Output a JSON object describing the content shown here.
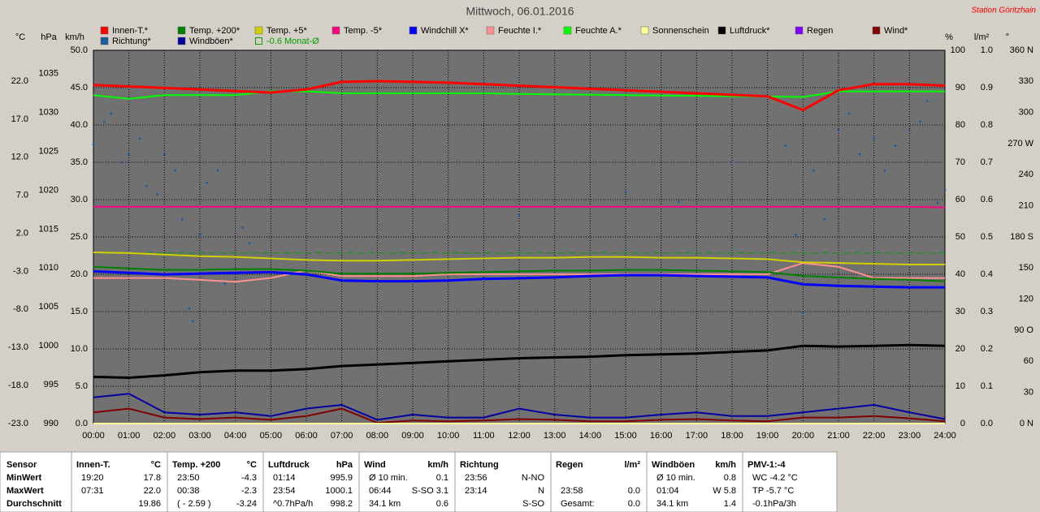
{
  "chart_data": {
    "type": "line",
    "title": "Mittwoch, 06.01.2016",
    "station": "Station Göritzhain",
    "x": [
      0,
      1,
      2,
      3,
      4,
      5,
      6,
      7,
      8,
      9,
      10,
      11,
      12,
      13,
      14,
      15,
      16,
      17,
      18,
      19,
      20,
      21,
      22,
      23,
      24
    ],
    "xlim": [
      0,
      24
    ],
    "xticks": [
      {
        "value": 0,
        "label": "00:00"
      },
      {
        "value": 1,
        "label": "01:00"
      },
      {
        "value": 2,
        "label": "02:00"
      },
      {
        "value": 3,
        "label": "03:00"
      },
      {
        "value": 4,
        "label": "04:00"
      },
      {
        "value": 5,
        "label": "05:00"
      },
      {
        "value": 6,
        "label": "06:00"
      },
      {
        "value": 7,
        "label": "07:00"
      },
      {
        "value": 8,
        "label": "08:00"
      },
      {
        "value": 9,
        "label": "09:00"
      },
      {
        "value": 10,
        "label": "10:00"
      },
      {
        "value": 11,
        "label": "11:00"
      },
      {
        "value": 12,
        "label": "12:00"
      },
      {
        "value": 13,
        "label": "13:00"
      },
      {
        "value": 14,
        "label": "14:00"
      },
      {
        "value": 15,
        "label": "15:00"
      },
      {
        "value": 16,
        "label": "16:00"
      },
      {
        "value": 17,
        "label": "17:00"
      },
      {
        "value": 18,
        "label": "18:00"
      },
      {
        "value": 19,
        "label": "19:00"
      },
      {
        "value": 20,
        "label": "20:00"
      },
      {
        "value": 21,
        "label": "21:00"
      },
      {
        "value": 22,
        "label": "22:00"
      },
      {
        "value": 23,
        "label": "23:00"
      },
      {
        "value": 24,
        "label": "24:00"
      }
    ],
    "grid": true,
    "grid_axis": "wind",
    "axes": {
      "temp": {
        "label": "°C",
        "lim": [
          -23,
          26.05
        ],
        "ticks": [
          {
            "value": -23,
            "label": "-23.0"
          },
          {
            "value": -18,
            "label": "-18.0"
          },
          {
            "value": -13,
            "label": "-13.0"
          },
          {
            "value": -8,
            "label": "-8.0"
          },
          {
            "value": -3,
            "label": "-3.0"
          },
          {
            "value": 2,
            "label": "2.0"
          },
          {
            "value": 7,
            "label": "7.0"
          },
          {
            "value": 12,
            "label": "12.0"
          },
          {
            "value": 17,
            "label": "17.0"
          },
          {
            "value": 22,
            "label": "22.0"
          }
        ]
      },
      "press": {
        "label": "hPa",
        "lim": [
          990,
          1038
        ],
        "ticks": [
          990,
          995,
          1000,
          1005,
          1010,
          1015,
          1020,
          1025,
          1030,
          1035
        ]
      },
      "wind": {
        "label": "km/h",
        "lim": [
          0,
          50
        ],
        "ticks": [
          {
            "value": 0,
            "label": "0.0"
          },
          {
            "value": 5,
            "label": "5.0"
          },
          {
            "value": 10,
            "label": "10.0"
          },
          {
            "value": 15,
            "label": "15.0"
          },
          {
            "value": 20,
            "label": "20.0"
          },
          {
            "value": 25,
            "label": "25.0"
          },
          {
            "value": 30,
            "label": "30.0"
          },
          {
            "value": 35,
            "label": "35.0"
          },
          {
            "value": 40,
            "label": "40.0"
          },
          {
            "value": 45,
            "label": "45.0"
          },
          {
            "value": 50,
            "label": "50.0"
          }
        ]
      },
      "hum": {
        "label": "%",
        "lim": [
          0,
          100
        ],
        "ticks": [
          0,
          10,
          20,
          30,
          40,
          50,
          60,
          70,
          80,
          90,
          100
        ]
      },
      "rain": {
        "label": "l/m²",
        "lim": [
          0,
          1
        ],
        "ticks": [
          {
            "value": 0,
            "label": "0.0"
          },
          0.1,
          0.2,
          0.3,
          0.4,
          0.5,
          0.6,
          0.7,
          0.8,
          0.9,
          {
            "value": 1,
            "label": "1.0"
          }
        ]
      },
      "dir": {
        "label": "°",
        "lim": [
          0,
          360
        ],
        "ticks": [
          {
            "value": 0,
            "label": "0 N"
          },
          30,
          60,
          {
            "value": 90,
            "label": "90 O"
          },
          120,
          150,
          {
            "value": 180,
            "label": "180 S"
          },
          210,
          240,
          {
            "value": 270,
            "label": "270 W"
          },
          300,
          330,
          {
            "value": 360,
            "label": "360 N"
          }
        ]
      }
    },
    "series": [
      {
        "name": "Innen-T.*",
        "color": "#ff0000",
        "axis": "temp",
        "width": 3,
        "values": [
          21.5,
          21.3,
          21.1,
          20.9,
          20.7,
          20.5,
          20.9,
          21.9,
          22.0,
          21.9,
          21.8,
          21.6,
          21.4,
          21.2,
          21.0,
          20.8,
          20.6,
          20.4,
          20.2,
          20.0,
          18.2,
          20.8,
          21.6,
          21.6,
          21.4
        ]
      },
      {
        "name": "Temp. +200*",
        "color": "#008000",
        "axis": "temp",
        "width": 2,
        "values": [
          -2.4,
          -2.6,
          -2.8,
          -2.8,
          -2.7,
          -2.7,
          -2.9,
          -3.3,
          -3.3,
          -3.3,
          -3.2,
          -3.1,
          -3.0,
          -2.9,
          -2.9,
          -2.8,
          -2.8,
          -2.9,
          -3.0,
          -3.1,
          -3.6,
          -3.8,
          -4.0,
          -4.1,
          -4.3
        ]
      },
      {
        "name": "Temp. +5*",
        "color": "#d0d000",
        "axis": "temp",
        "width": 2,
        "values": [
          -0.5,
          -0.6,
          -0.8,
          -1.0,
          -1.1,
          -1.3,
          -1.5,
          -1.6,
          -1.6,
          -1.5,
          -1.4,
          -1.3,
          -1.2,
          -1.2,
          -1.1,
          -1.1,
          -1.2,
          -1.2,
          -1.3,
          -1.4,
          -1.8,
          -1.9,
          -2.0,
          -2.1,
          -2.1
        ]
      },
      {
        "name": "Temp. -5*",
        "color": "#ff0080",
        "axis": "temp",
        "width": 2,
        "values": [
          5.5,
          5.5,
          5.5,
          5.5,
          5.5,
          5.5,
          5.5,
          5.5,
          5.5,
          5.5,
          5.5,
          5.5,
          5.5,
          5.5,
          5.5,
          5.5,
          5.5,
          5.5,
          5.5,
          5.5,
          5.5,
          5.5,
          5.5,
          5.5,
          5.4
        ]
      },
      {
        "name": "Windchill X*",
        "color": "#0000ff",
        "axis": "temp",
        "width": 3,
        "values": [
          -3.0,
          -3.2,
          -3.4,
          -3.3,
          -3.2,
          -3.1,
          -3.4,
          -4.2,
          -4.3,
          -4.3,
          -4.2,
          -4.0,
          -3.9,
          -3.8,
          -3.6,
          -3.5,
          -3.5,
          -3.6,
          -3.7,
          -3.8,
          -4.7,
          -4.9,
          -5.0,
          -5.1,
          -5.1
        ]
      },
      {
        "name": "Feuchte I.*",
        "color": "#ff9090",
        "axis": "hum",
        "width": 2,
        "values": [
          39,
          39,
          39,
          38.5,
          38,
          39,
          41,
          39.5,
          39.5,
          39.5,
          40,
          40,
          40,
          40,
          40,
          40,
          40,
          40,
          40,
          40,
          43,
          42,
          39,
          39,
          39
        ]
      },
      {
        "name": "Feuchte A.*",
        "color": "#00ff00",
        "axis": "hum",
        "width": 2,
        "values": [
          88,
          87,
          88,
          88,
          88,
          89,
          89,
          88.5,
          88.5,
          88.5,
          88.5,
          88.5,
          88.3,
          88.2,
          88.1,
          88,
          87.9,
          87.8,
          87.7,
          87.6,
          87.5,
          89,
          89,
          89,
          89
        ]
      },
      {
        "name": "Sonnenschein",
        "color": "#ffff99",
        "axis": "wind",
        "width": 2,
        "values": [
          0,
          0,
          0,
          0,
          0,
          0,
          0,
          0,
          0,
          0,
          0,
          0,
          0,
          0,
          0,
          0,
          0,
          0,
          0,
          0,
          0,
          0,
          0,
          0,
          0
        ]
      },
      {
        "name": "Luftdruck*",
        "color": "#000000",
        "axis": "press",
        "width": 3,
        "values": [
          996.0,
          995.9,
          996.2,
          996.6,
          996.8,
          996.8,
          997.0,
          997.4,
          997.6,
          997.8,
          998.0,
          998.2,
          998.4,
          998.5,
          998.6,
          998.8,
          998.9,
          999.0,
          999.2,
          999.4,
          1000.0,
          999.9,
          1000.0,
          1000.1,
          1000.0
        ]
      },
      {
        "name": "Regen",
        "color": "#8000ff",
        "axis": "rain",
        "width": 2,
        "values": [
          0,
          0,
          0,
          0,
          0,
          0,
          0,
          0,
          0,
          0,
          0,
          0,
          0,
          0,
          0,
          0,
          0,
          0,
          0,
          0,
          0,
          0,
          0,
          0,
          0
        ]
      },
      {
        "name": "Wind*",
        "color": "#800000",
        "axis": "wind",
        "width": 2,
        "values": [
          1.5,
          2.0,
          0.8,
          0.6,
          0.8,
          0.5,
          1.0,
          2.0,
          0.1,
          0.4,
          0.3,
          0.4,
          0.6,
          0.5,
          0.3,
          0.3,
          0.5,
          0.6,
          0.4,
          0.3,
          0.8,
          0.8,
          1.0,
          0.7,
          0.3
        ]
      },
      {
        "name": "Richtung*",
        "color": "#1e5aa0",
        "axis": "dir",
        "type": "scatter",
        "x": [
          0.0,
          0.3,
          0.5,
          0.8,
          1.0,
          1.3,
          1.5,
          1.8,
          2.0,
          2.3,
          2.5,
          2.7,
          2.8,
          3.0,
          3.2,
          3.5,
          3.7,
          4.0,
          4.2,
          4.4,
          6.0,
          12.0,
          15.0,
          16.5,
          18.0,
          19.5,
          19.8,
          20.0,
          20.3,
          20.6,
          21.0,
          21.3,
          21.6,
          22.0,
          22.3,
          22.6,
          23.0,
          23.3,
          23.5,
          23.8,
          24.0
        ],
        "values": [
          269,
          291,
          299,
          252,
          260,
          275,
          229,
          221,
          260,
          244,
          197,
          111,
          99,
          182,
          232,
          244,
          135,
          209,
          189,
          174,
          157,
          201,
          223,
          214,
          252,
          268,
          182,
          107,
          244,
          197,
          283,
          299,
          260,
          275,
          244,
          268,
          283,
          291,
          311,
          213,
          225
        ]
      },
      {
        "name": "Windböen*",
        "color": "#0000a0",
        "axis": "wind",
        "width": 2,
        "values": [
          3.5,
          4.0,
          1.5,
          1.2,
          1.5,
          1.0,
          2.0,
          2.5,
          0.5,
          1.2,
          0.8,
          0.8,
          2.0,
          1.2,
          0.8,
          0.8,
          1.2,
          1.5,
          1.0,
          1.0,
          1.5,
          2.0,
          2.5,
          1.5,
          0.6
        ]
      }
    ],
    "reference_lines": [
      {
        "name": "-0.6 Monat-Ø",
        "value": -0.6,
        "axis": "temp",
        "color": "#00a000"
      }
    ]
  },
  "table": {
    "row_labels": [
      "Sensor",
      "MinWert",
      "MaxWert",
      "Durchschnitt"
    ],
    "columns": [
      {
        "title": "Innen-T.",
        "unit": "°C",
        "rows": [
          {
            "time": "19:20",
            "value": "17.8"
          },
          {
            "time": "07:31",
            "value": "22.0"
          },
          {
            "value": "19.86"
          }
        ]
      },
      {
        "title": "Temp. +200",
        "unit": "°C",
        "rows": [
          {
            "time": "23:50",
            "value": "-4.3"
          },
          {
            "time": "00:38",
            "value": "-2.3"
          },
          {
            "time": "( - 2.59 )",
            "value": "-3.24"
          }
        ]
      },
      {
        "title": "Luftdruck",
        "unit": "hPa",
        "rows": [
          {
            "time": "01:14",
            "value": "995.9"
          },
          {
            "time": "23:54",
            "value": "1000.1"
          },
          {
            "time": "^0.7hPa/h",
            "value": "998.2"
          }
        ]
      },
      {
        "title": "Wind",
        "unit": "km/h",
        "rows": [
          {
            "time": "Ø 10 min.",
            "value": "0.1"
          },
          {
            "time": "06:44",
            "value": "S-SO 3.1"
          },
          {
            "time": "34.1 km",
            "value": "0.6"
          }
        ]
      },
      {
        "title": "Richtung",
        "rows": [
          {
            "time": "23:56",
            "value": "N-NO"
          },
          {
            "time": "23:14",
            "value": "N"
          },
          {
            "value": "S-SO"
          }
        ]
      },
      {
        "title": "Regen",
        "unit": "l/m²",
        "rows": [
          {},
          {
            "time": "23:58",
            "value": "0.0"
          },
          {
            "time": "Gesamt:",
            "value": "0.0"
          }
        ]
      },
      {
        "title": "Windböen",
        "unit": "km/h",
        "rows": [
          {
            "time": "Ø 10 min.",
            "value": "0.8"
          },
          {
            "time": "01:04",
            "value": "W 5.8"
          },
          {
            "time": "34.1 km",
            "value": "1.4"
          }
        ]
      },
      {
        "title": "PMV-1:-4",
        "rows": [
          {
            "time": "WC -4.2 °C"
          },
          {
            "time": "TP -5.7 °C"
          },
          {
            "time": "-0.1hPa/3h"
          }
        ]
      }
    ]
  }
}
